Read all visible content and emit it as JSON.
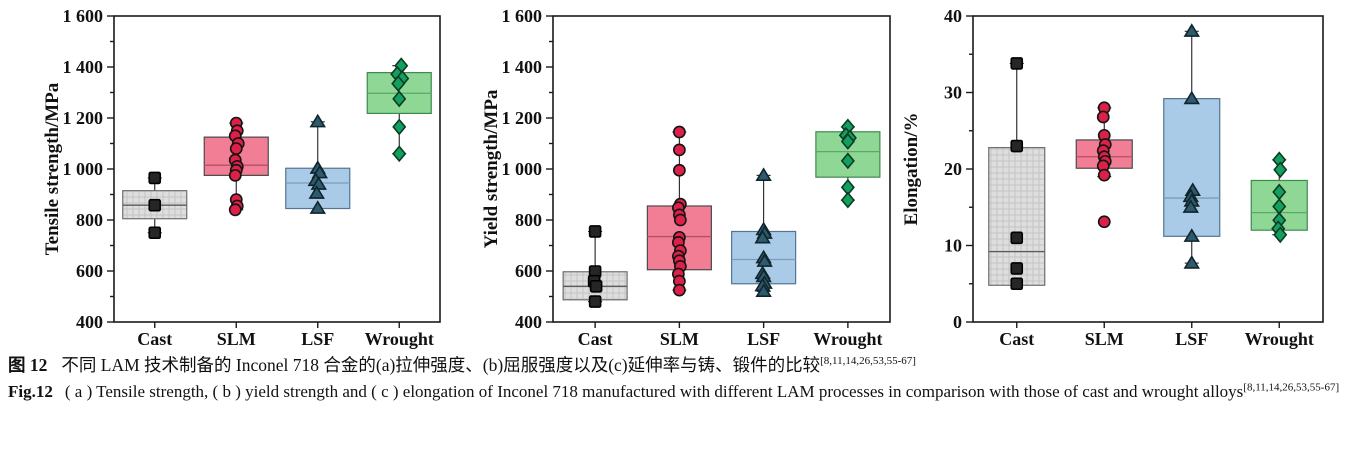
{
  "caption": {
    "zh": {
      "label": "图 12",
      "text": "不同 LAM 技术制备的 Inconel 718 合金的(a)拉伸强度、(b)屈服强度以及(c)延伸率与铸、锻件的比较",
      "ref": "[8,11,14,26,53,55-67]"
    },
    "en": {
      "label": "Fig.12",
      "text": "( a ) Tensile strength, ( b ) yield strength and ( c ) elongation of Inconel 718 manufactured with different LAM processes in comparison with those of cast and wrought alloys",
      "ref": "[8,11,14,26,53,55-67]"
    }
  },
  "chart_data": [
    {
      "id": "a",
      "type": "box",
      "title": "",
      "xlabel": "",
      "ylabel": "Tensile strength/MPa",
      "ylim": [
        400,
        1600
      ],
      "yticks": {
        "values": [
          400,
          600,
          800,
          1000,
          1200,
          1400,
          1600
        ],
        "labels": [
          "400",
          "600",
          "800",
          "1 000",
          "1 200",
          "1 400",
          "1 600"
        ]
      },
      "minor_step": 100,
      "grid": false,
      "legend": "none",
      "categories": [
        {
          "label": "Cast",
          "marker": "square",
          "hatch": true,
          "box_fill": "#dcdcdc",
          "box_edge": "#6e6e6e",
          "median_color": "#5a5a5a",
          "marker_fill": "#262626",
          "marker_edge": "#000000",
          "q1": 805,
          "q3": 915,
          "median": 858,
          "whisker_low": 750,
          "whisker_high": 965,
          "points": [
            965,
            858,
            750
          ],
          "jitter": [
            0,
            0,
            0
          ]
        },
        {
          "label": "SLM",
          "marker": "circle",
          "hatch": false,
          "box_fill": "#f27e96",
          "box_edge": "#4a4a4a",
          "median_color": "#b4506a",
          "marker_fill": "#dc2048",
          "marker_edge": "#141414",
          "q1": 975,
          "q3": 1125,
          "median": 1015,
          "whisker_low": 840,
          "whisker_high": 1180,
          "points": [
            1180,
            1150,
            1130,
            1100,
            1080,
            1035,
            1010,
            995,
            975,
            880,
            855,
            840
          ],
          "jitter": [
            0,
            1,
            -1,
            2,
            0,
            -1,
            1,
            0,
            -1,
            0,
            1,
            -1
          ]
        },
        {
          "label": "LSF",
          "marker": "triangle",
          "hatch": false,
          "box_fill": "#a9cbe7",
          "box_edge": "#547592",
          "median_color": "#7c9cb5",
          "marker_fill": "#2e5a6e",
          "marker_edge": "#10242c",
          "q1": 845,
          "q3": 1003,
          "median": 945,
          "whisker_low": 845,
          "whisker_high": 1185,
          "points": [
            1185,
            1003,
            985,
            955,
            940,
            905,
            846
          ],
          "jitter": [
            0,
            0,
            2,
            -2,
            1,
            -1,
            0
          ]
        },
        {
          "label": "Wrought",
          "marker": "diamond",
          "hatch": false,
          "box_fill": "#8fd794",
          "box_edge": "#3c8a50",
          "median_color": "#59a968",
          "marker_fill": "#13a05f",
          "marker_edge": "#0c3a24",
          "q1": 1218,
          "q3": 1378,
          "median": 1297,
          "whisker_low": 1060,
          "whisker_high": 1405,
          "points": [
            1405,
            1372,
            1355,
            1335,
            1275,
            1165,
            1060
          ],
          "jitter": [
            2,
            -2,
            3,
            -1,
            0,
            0,
            0
          ]
        }
      ]
    },
    {
      "id": "b",
      "type": "box",
      "title": "",
      "xlabel": "",
      "ylabel": "Yield strength/MPa",
      "ylim": [
        400,
        1600
      ],
      "yticks": {
        "values": [
          400,
          600,
          800,
          1000,
          1200,
          1400,
          1600
        ],
        "labels": [
          "400",
          "600",
          "800",
          "1 000",
          "1 200",
          "1 400",
          "1 600"
        ]
      },
      "minor_step": 100,
      "grid": false,
      "legend": "none",
      "categories": [
        {
          "label": "Cast",
          "marker": "square",
          "hatch": true,
          "box_fill": "#dcdcdc",
          "box_edge": "#6e6e6e",
          "median_color": "#5a5a5a",
          "marker_fill": "#262626",
          "marker_edge": "#000000",
          "q1": 487,
          "q3": 597,
          "median": 540,
          "whisker_low": 480,
          "whisker_high": 755,
          "points": [
            755,
            598,
            560,
            540,
            480
          ],
          "jitter": [
            0,
            0,
            -1,
            1,
            0
          ]
        },
        {
          "label": "SLM",
          "marker": "circle",
          "hatch": false,
          "box_fill": "#f27e96",
          "box_edge": "#4a4a4a",
          "median_color": "#b4506a",
          "marker_fill": "#dc2048",
          "marker_edge": "#141414",
          "q1": 605,
          "q3": 855,
          "median": 735,
          "whisker_low": 525,
          "whisker_high": 1145,
          "points": [
            1145,
            1075,
            995,
            862,
            848,
            820,
            800,
            732,
            712,
            680,
            658,
            640,
            618,
            588,
            560,
            525
          ],
          "jitter": [
            0,
            0,
            0,
            1,
            -1,
            0,
            1,
            0,
            -1,
            1,
            -1,
            0,
            1,
            -1,
            0,
            0
          ]
        },
        {
          "label": "LSF",
          "marker": "triangle",
          "hatch": false,
          "box_fill": "#a9cbe7",
          "box_edge": "#547592",
          "median_color": "#7c9cb5",
          "marker_fill": "#2e5a6e",
          "marker_edge": "#10242c",
          "q1": 550,
          "q3": 755,
          "median": 645,
          "whisker_low": 520,
          "whisker_high": 975,
          "points": [
            975,
            762,
            748,
            730,
            652,
            638,
            590,
            578,
            552,
            542,
            520
          ],
          "jitter": [
            0,
            0,
            1,
            -1,
            0,
            1,
            -1,
            0,
            1,
            -1,
            0
          ]
        },
        {
          "label": "Wrought",
          "marker": "diamond",
          "hatch": false,
          "box_fill": "#8fd794",
          "box_edge": "#3c8a50",
          "median_color": "#59a968",
          "marker_fill": "#13a05f",
          "marker_edge": "#0c3a24",
          "q1": 968,
          "q3": 1146,
          "median": 1068,
          "whisker_low": 878,
          "whisker_high": 1165,
          "points": [
            1165,
            1132,
            1122,
            1108,
            1032,
            928,
            878
          ],
          "jitter": [
            0,
            -2,
            2,
            0,
            0,
            0,
            0
          ]
        }
      ]
    },
    {
      "id": "c",
      "type": "box",
      "title": "",
      "xlabel": "",
      "ylabel": "Elongation/%",
      "ylim": [
        0,
        40
      ],
      "yticks": {
        "values": [
          0,
          10,
          20,
          30,
          40
        ],
        "labels": [
          "0",
          "10",
          "20",
          "30",
          "40"
        ]
      },
      "minor_step": 5,
      "grid": false,
      "legend": "none",
      "categories": [
        {
          "label": "Cast",
          "marker": "square",
          "hatch": true,
          "box_fill": "#dcdcdc",
          "box_edge": "#6e6e6e",
          "median_color": "#5a5a5a",
          "marker_fill": "#262626",
          "marker_edge": "#000000",
          "q1": 4.8,
          "q3": 22.8,
          "median": 9.2,
          "whisker_low": 4.8,
          "whisker_high": 33.8,
          "points": [
            33.8,
            23,
            11,
            7,
            5
          ],
          "jitter": [
            0,
            0,
            0,
            0,
            0
          ]
        },
        {
          "label": "SLM",
          "marker": "circle",
          "hatch": false,
          "box_fill": "#f27e96",
          "box_edge": "#4a4a4a",
          "median_color": "#b4506a",
          "marker_fill": "#dc2048",
          "marker_edge": "#141414",
          "q1": 20.1,
          "q3": 23.8,
          "median": 21.6,
          "whisker_low": 19,
          "whisker_high": 28,
          "points": [
            28,
            26.8,
            24.4,
            23.2,
            22.4,
            21.6,
            21,
            20.4,
            19.2,
            13.1
          ],
          "jitter": [
            0,
            -1,
            0,
            1,
            -1,
            0,
            1,
            -1,
            0,
            0
          ]
        },
        {
          "label": "LSF",
          "marker": "triangle",
          "hatch": false,
          "box_fill": "#a9cbe7",
          "box_edge": "#547592",
          "median_color": "#7c9cb5",
          "marker_fill": "#2e5a6e",
          "marker_edge": "#10242c",
          "q1": 11.2,
          "q3": 29.2,
          "median": 16.2,
          "whisker_low": 7.7,
          "whisker_high": 38,
          "points": [
            38,
            29.2,
            17.2,
            16.4,
            15.8,
            15.0,
            11.2,
            7.7
          ],
          "jitter": [
            0,
            0,
            1,
            -1,
            0,
            -1,
            0,
            0
          ]
        },
        {
          "label": "Wrought",
          "marker": "diamond",
          "hatch": false,
          "box_fill": "#8fd794",
          "box_edge": "#3c8a50",
          "median_color": "#59a968",
          "marker_fill": "#13a05f",
          "marker_edge": "#0c3a24",
          "q1": 12,
          "q3": 18.5,
          "median": 14.3,
          "whisker_low": 11.4,
          "whisker_high": 21.2,
          "points": [
            21.2,
            19.9,
            17,
            15.1,
            13.3,
            12.2,
            11.4
          ],
          "jitter": [
            0,
            1,
            0,
            0,
            0,
            -1,
            1
          ]
        }
      ]
    }
  ]
}
